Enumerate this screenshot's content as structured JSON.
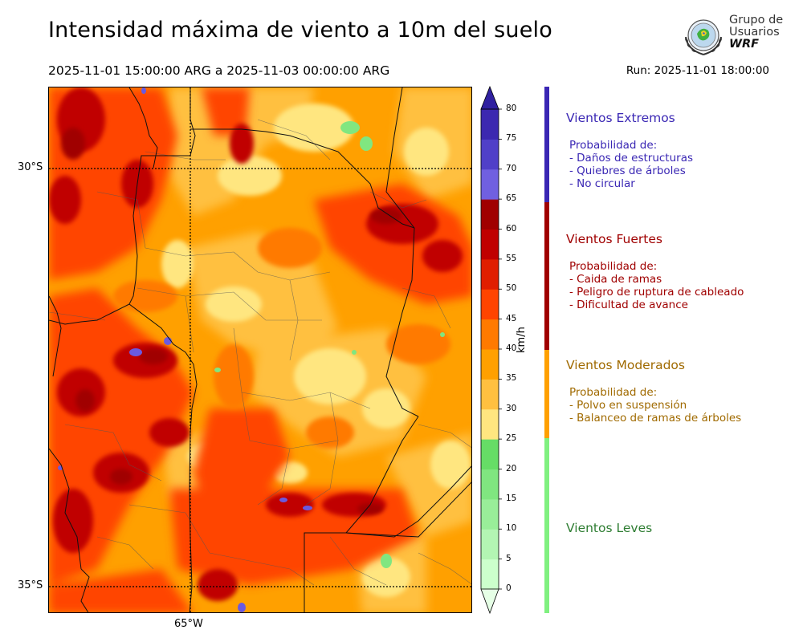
{
  "title": "Intensidad máxima de viento a 10m del suelo",
  "period": "2025-11-01 15:00:00 ARG  a  2025-11-03 00:00:00 ARG",
  "run": "Run: 2025-11-01 18:00:00",
  "logo": {
    "line1": "Grupo de",
    "line2": "Usuarios",
    "line3": "WRF"
  },
  "map": {
    "lat_labels": [
      "30°S",
      "35°S"
    ],
    "lon_labels": [
      "65°W"
    ]
  },
  "colorbar": {
    "unit": "km/h",
    "ticks": [
      "0",
      "5",
      "10",
      "15",
      "20",
      "25",
      "30",
      "35",
      "40",
      "45",
      "50",
      "55",
      "60",
      "65",
      "70",
      "75",
      "80"
    ],
    "colors": [
      "#e6ffe6",
      "#ccffcc",
      "#b3f5b3",
      "#99ee99",
      "#80e680",
      "#66dd66",
      "#ffe680",
      "#ffc040",
      "#ffa000",
      "#ff7a00",
      "#ff4400",
      "#e01e00",
      "#c00000",
      "#a00000",
      "#7060e0",
      "#5040c8",
      "#3c28b0",
      "#3020a0"
    ]
  },
  "categories": [
    {
      "title": "Vientos Extremos",
      "color": "#3a27b4",
      "lines": [
        "Probabilidad de:",
        "- Daños de estructuras",
        "- Quiebres de árboles",
        "- No circular"
      ]
    },
    {
      "title": "Vientos Fuertes",
      "color": "#a00000",
      "lines": [
        "Probabilidad de:",
        "- Caida de ramas",
        "- Peligro de ruptura de cableado",
        "- Dificultad de avance"
      ]
    },
    {
      "title": "Vientos Moderados",
      "color": "#a06a00",
      "lines": [
        "Probabilidad de:",
        "- Polvo en suspensión",
        "- Balanceo de ramas de árboles"
      ]
    },
    {
      "title": "Vientos Leves",
      "color": "#2e7d32",
      "lines": []
    }
  ]
}
